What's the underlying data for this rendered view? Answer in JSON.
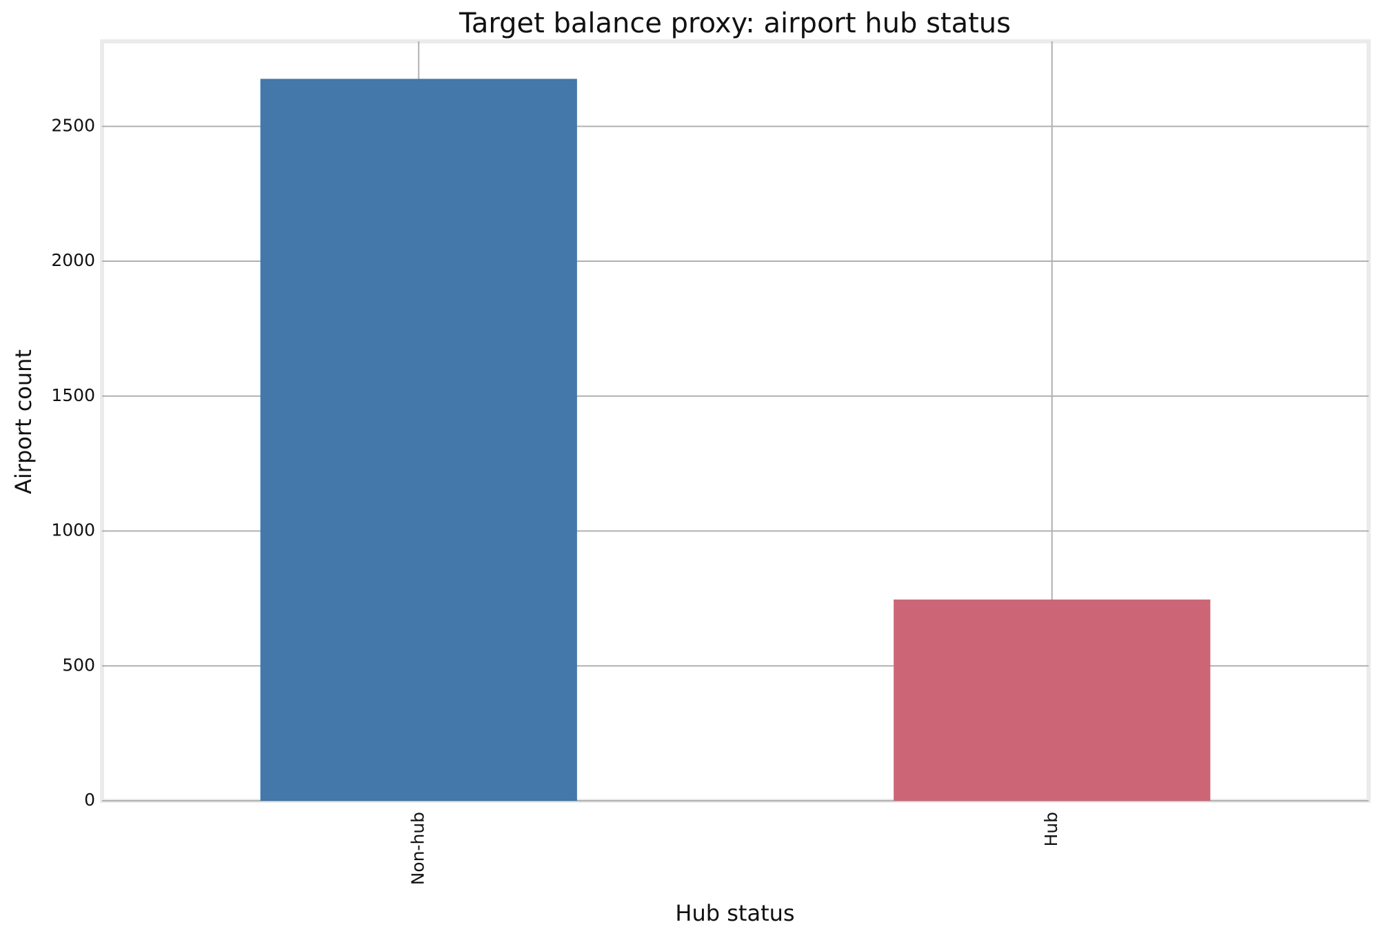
{
  "chart_data": {
    "type": "bar",
    "title": "Target balance proxy: airport hub status",
    "x_label": "Hub status",
    "y_label": "Airport count",
    "categories": [
      "Non-hub",
      "Hub"
    ],
    "values": [
      2676,
      746
    ],
    "colors": [
      "#4477aa",
      "#cc6677"
    ],
    "ylim": [
      0,
      2815
    ],
    "yticks": [
      0,
      500,
      1000,
      1500,
      2000,
      2500
    ],
    "grid": true
  }
}
